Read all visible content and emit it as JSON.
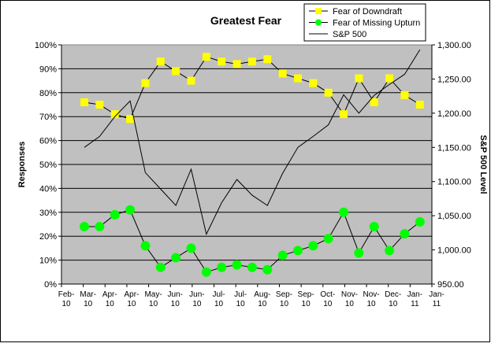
{
  "chart_data": {
    "type": "line",
    "title": "Greatest Fear",
    "y_label": "Responses",
    "y2_label": "S&P 500 Level",
    "xlim": [
      0,
      340
    ],
    "xticks": [
      {
        "value": 0,
        "label": "Feb-10"
      },
      {
        "value": 20,
        "label": "Mar-10"
      },
      {
        "value": 40,
        "label": "Apr-10"
      },
      {
        "value": 60,
        "label": "Apr-10"
      },
      {
        "value": 80,
        "label": "May-10"
      },
      {
        "value": 100,
        "label": "Jun-10"
      },
      {
        "value": 120,
        "label": "Jun-10"
      },
      {
        "value": 140,
        "label": "Jul-10"
      },
      {
        "value": 160,
        "label": "Jul-10"
      },
      {
        "value": 180,
        "label": "Aug-10"
      },
      {
        "value": 200,
        "label": "Sep-10"
      },
      {
        "value": 220,
        "label": "Sep-10"
      },
      {
        "value": 240,
        "label": "Oct-10"
      },
      {
        "value": 260,
        "label": "Nov-10"
      },
      {
        "value": 280,
        "label": "Nov-10"
      },
      {
        "value": 300,
        "label": "Dec-10"
      },
      {
        "value": 320,
        "label": "Jan-11"
      },
      {
        "value": 340,
        "label": "Jan-11"
      }
    ],
    "ylim": [
      0,
      100
    ],
    "yticks": [
      {
        "value": 0,
        "label": "0%"
      },
      {
        "value": 10,
        "label": "10%"
      },
      {
        "value": 20,
        "label": "20%"
      },
      {
        "value": 30,
        "label": "30%"
      },
      {
        "value": 40,
        "label": "40%"
      },
      {
        "value": 50,
        "label": "50%"
      },
      {
        "value": 60,
        "label": "60%"
      },
      {
        "value": 70,
        "label": "70%"
      },
      {
        "value": 80,
        "label": "80%"
      },
      {
        "value": 90,
        "label": "90%"
      },
      {
        "value": 100,
        "label": "100%"
      }
    ],
    "y2lim": [
      950,
      1300
    ],
    "y2ticks": [
      {
        "value": 950,
        "label": "950.00"
      },
      {
        "value": 1000,
        "label": "1,000.00"
      },
      {
        "value": 1050,
        "label": "1,050.00"
      },
      {
        "value": 1100,
        "label": "1,100.00"
      },
      {
        "value": 1150,
        "label": "1,150.00"
      },
      {
        "value": 1200,
        "label": "1,200.00"
      },
      {
        "value": 1250,
        "label": "1,250.00"
      },
      {
        "value": 1300,
        "label": "1,300.00"
      }
    ],
    "grid": true,
    "plot_background": "#c0c0c0",
    "legend": "top-right",
    "x": [
      21,
      35,
      49,
      63,
      77,
      91,
      105,
      119,
      133,
      147,
      161,
      175,
      189,
      203,
      217,
      231,
      245,
      259,
      273,
      287,
      301,
      315,
      329
    ],
    "series": [
      {
        "name": "Fear of Downdraft",
        "color": "#ffff00",
        "line_color": "#000000",
        "marker": "square",
        "values": [
          76,
          75,
          71,
          69,
          84,
          93,
          89,
          85,
          95,
          93,
          92,
          93,
          94,
          88,
          86,
          84,
          80,
          71,
          86,
          76,
          86,
          79,
          75
        ]
      },
      {
        "name": "Fear of Missing Upturn",
        "color": "#00ff00",
        "line_color": "#000000",
        "marker": "circle",
        "values": [
          24,
          24,
          29,
          31,
          16,
          7,
          11,
          15,
          5,
          7,
          8,
          7,
          6,
          12,
          14,
          16,
          19,
          30,
          13,
          24,
          14,
          21,
          26
        ]
      },
      {
        "name": "S&P 500",
        "color": "#000000",
        "line_color": "#000000",
        "marker": "none",
        "axis": "y2",
        "values": [
          1150,
          1166,
          1195,
          1218,
          1113,
          1089,
          1065,
          1118,
          1023,
          1069,
          1103,
          1080,
          1065,
          1112,
          1150,
          1166,
          1183,
          1227,
          1200,
          1226,
          1242,
          1257,
          1293
        ]
      }
    ]
  }
}
